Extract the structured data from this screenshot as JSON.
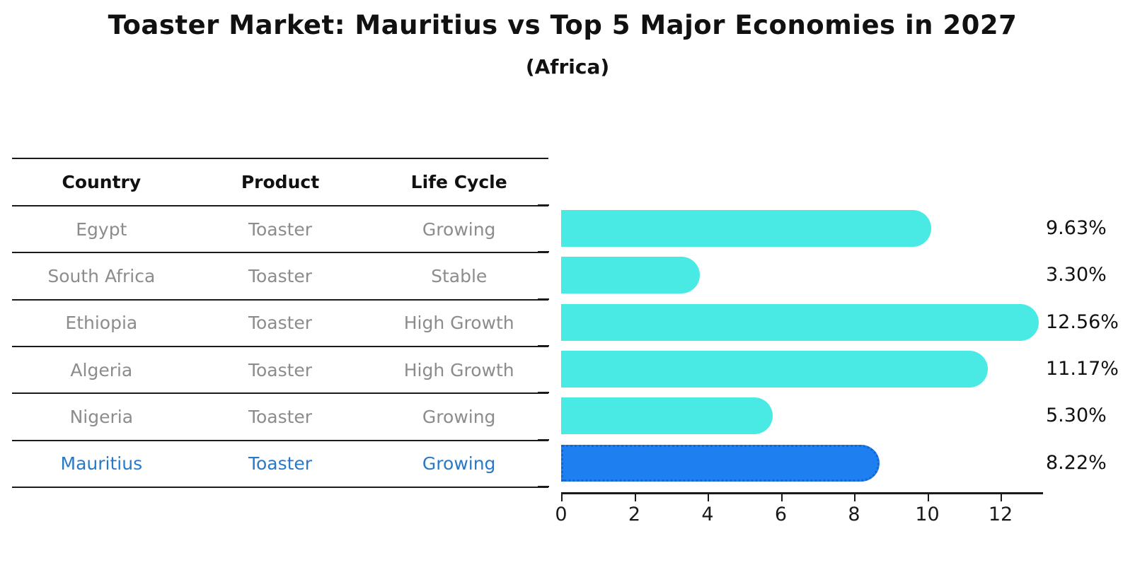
{
  "title": "Toaster Market: Mauritius vs Top 5 Major Economies in 2027",
  "subtitle": "(Africa)",
  "table": {
    "headers": [
      "Country",
      "Product",
      "Life Cycle"
    ],
    "rows": [
      {
        "country": "Egypt",
        "product": "Toaster",
        "life_cycle": "Growing",
        "highlight": false
      },
      {
        "country": "South Africa",
        "product": "Toaster",
        "life_cycle": "Stable",
        "highlight": false
      },
      {
        "country": "Ethiopia",
        "product": "Toaster",
        "life_cycle": "High Growth",
        "highlight": false
      },
      {
        "country": "Algeria",
        "product": "Toaster",
        "life_cycle": "High Growth",
        "highlight": false
      },
      {
        "country": "Nigeria",
        "product": "Toaster",
        "life_cycle": "Growing",
        "highlight": false
      },
      {
        "country": "Mauritius",
        "product": "Toaster",
        "life_cycle": "Growing",
        "highlight": true
      }
    ]
  },
  "chart_data": {
    "type": "bar",
    "orientation": "horizontal",
    "title": "Toaster Market: Mauritius vs Top 5 Major Economies in 2027",
    "subtitle": "(Africa)",
    "categories": [
      "Egypt",
      "South Africa",
      "Ethiopia",
      "Algeria",
      "Nigeria",
      "Mauritius"
    ],
    "values": [
      9.63,
      3.3,
      12.56,
      11.17,
      5.3,
      8.22
    ],
    "value_labels": [
      "9.63%",
      "3.30%",
      "12.56%",
      "11.17%",
      "5.30%",
      "8.22%"
    ],
    "highlight_category": "Mauritius",
    "xlabel": "",
    "ylabel": "",
    "xlim": [
      0,
      13.16
    ],
    "xticks": [
      0,
      2,
      4,
      6,
      8,
      10,
      12
    ],
    "grid": false,
    "legend": "none",
    "bar_color": "#48eae3",
    "highlight_bar_color": "#1e7ff0",
    "highlight_text_color": "#2979ca",
    "row_text_color": "#8c8c8c"
  }
}
